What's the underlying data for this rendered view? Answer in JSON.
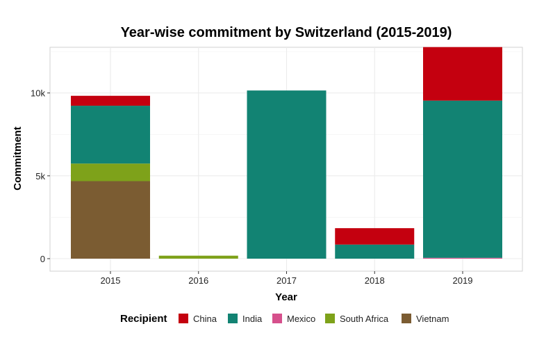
{
  "chart_data": {
    "type": "bar",
    "stacked": true,
    "title": "Year-wise commitment by Switzerland (2015-2019)",
    "xlabel": "Year",
    "ylabel": "Commitment",
    "categories": [
      "2015",
      "2016",
      "2017",
      "2018",
      "2019"
    ],
    "ylim": [
      0,
      12800
    ],
    "yticks": [
      {
        "value": 0,
        "label": "0"
      },
      {
        "value": 5000,
        "label": "5k"
      },
      {
        "value": 10000,
        "label": "10k"
      }
    ],
    "grid": true,
    "legend_title": "Recipient",
    "legend_position": "bottom",
    "series": [
      {
        "name": "Vietnam",
        "color": "#7B5C32",
        "values": [
          4680,
          0,
          0,
          0,
          0
        ]
      },
      {
        "name": "South Africa",
        "color": "#7EA21A",
        "values": [
          1060,
          180,
          0,
          0,
          0
        ]
      },
      {
        "name": "Mexico",
        "color": "#D6508C",
        "values": [
          0,
          0,
          0,
          0,
          50
        ]
      },
      {
        "name": "India",
        "color": "#128373",
        "values": [
          3490,
          0,
          10150,
          850,
          9490
        ]
      },
      {
        "name": "China",
        "color": "#C4000F",
        "values": [
          600,
          0,
          0,
          990,
          3230
        ]
      }
    ],
    "legend_order": [
      "China",
      "India",
      "Mexico",
      "South Africa",
      "Vietnam"
    ]
  }
}
